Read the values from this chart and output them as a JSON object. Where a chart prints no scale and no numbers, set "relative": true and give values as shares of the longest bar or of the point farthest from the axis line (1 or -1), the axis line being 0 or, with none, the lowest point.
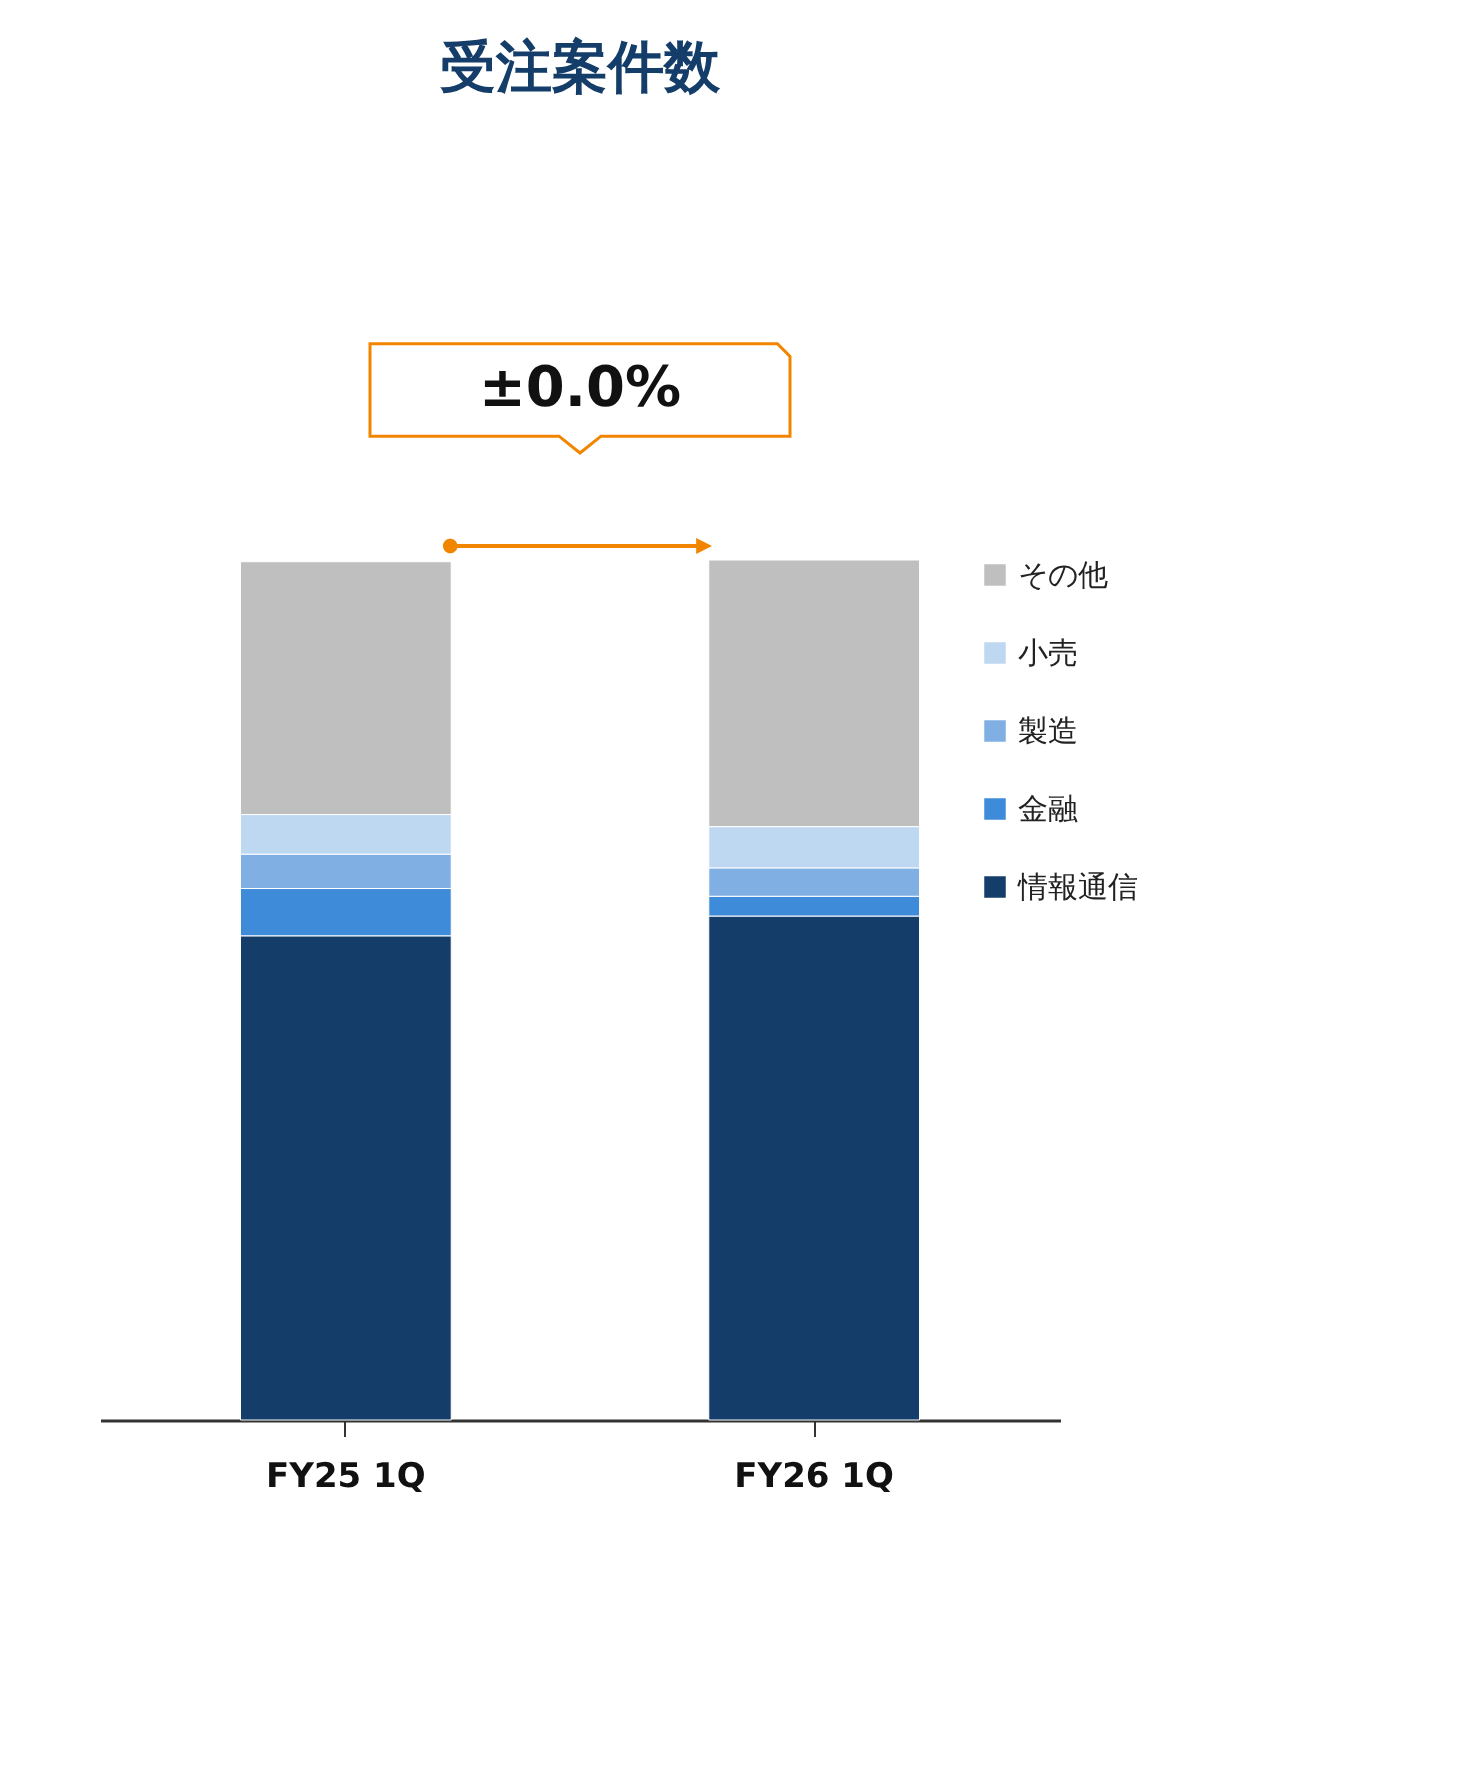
{
  "chart_data": {
    "type": "bar",
    "title": "受注案件数",
    "categories": [
      "FY25 1Q",
      "FY26 1Q"
    ],
    "stacked": true,
    "relative": true,
    "legend": "right",
    "series": [
      {
        "name": "情報通信",
        "color": "#143d69",
        "values": [
          0.563,
          0.586
        ]
      },
      {
        "name": "金融",
        "color": "#3d8bd9",
        "values": [
          0.055,
          0.023
        ]
      },
      {
        "name": "製造",
        "color": "#80b0e3",
        "values": [
          0.04,
          0.033
        ]
      },
      {
        "name": "小売",
        "color": "#bfd8f2",
        "values": [
          0.046,
          0.048
        ]
      },
      {
        "name": "その他",
        "color": "#bfbfbf",
        "values": [
          0.294,
          0.31
        ]
      }
    ],
    "annotations": [
      "±0.0%"
    ]
  }
}
